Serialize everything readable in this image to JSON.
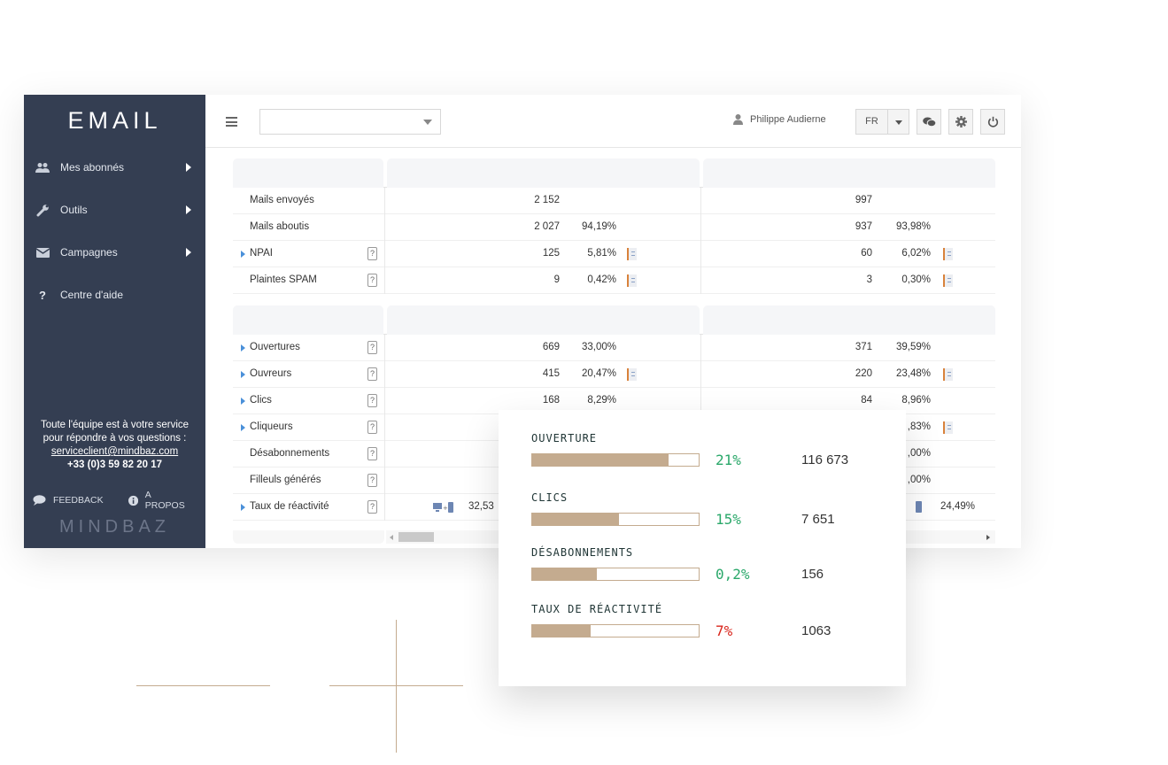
{
  "sidebar": {
    "logo": "EMAIL",
    "items": [
      {
        "label": "Mes abonnés"
      },
      {
        "label": "Outils"
      },
      {
        "label": "Campagnes"
      },
      {
        "label": "Centre d'aide"
      }
    ],
    "support_line1": "Toute l'équipe est à votre service",
    "support_line2": "pour répondre à vos questions :",
    "support_email": "serviceclient@mindbaz.com",
    "support_phone": "+33 (0)3 59 82 20 17",
    "feedback": "FEEDBACK",
    "about": "A PROPOS",
    "brand": "MINDBAZ"
  },
  "topbar": {
    "select_value": "",
    "user_name": "Philippe Audierne",
    "language": "FR"
  },
  "table1": {
    "rows": [
      {
        "label": "Mails envoyés",
        "expand": false,
        "help": false,
        "c1_num": "2 152",
        "c1_pct": "",
        "c1_icon": false,
        "c2_num": "997",
        "c2_pct": "",
        "c2_icon": false
      },
      {
        "label": "Mails aboutis",
        "expand": false,
        "help": false,
        "c1_num": "2 027",
        "c1_pct": "94,19%",
        "c1_icon": false,
        "c2_num": "937",
        "c2_pct": "93,98%",
        "c2_icon": false
      },
      {
        "label": "NPAI",
        "expand": true,
        "help": true,
        "c1_num": "125",
        "c1_pct": "5,81%",
        "c1_icon": true,
        "c2_num": "60",
        "c2_pct": "6,02%",
        "c2_icon": true
      },
      {
        "label": "Plaintes SPAM",
        "expand": false,
        "help": true,
        "c1_num": "9",
        "c1_pct": "0,42%",
        "c1_icon": true,
        "c2_num": "3",
        "c2_pct": "0,30%",
        "c2_icon": true
      }
    ]
  },
  "table2": {
    "rows": [
      {
        "label": "Ouvertures",
        "expand": true,
        "help": true,
        "c1_num": "669",
        "c1_pct": "33,00%",
        "c1_icon": false,
        "c2_num": "371",
        "c2_pct": "39,59%",
        "c2_icon": false
      },
      {
        "label": "Ouvreurs",
        "expand": true,
        "help": true,
        "c1_num": "415",
        "c1_pct": "20,47%",
        "c1_icon": true,
        "c2_num": "220",
        "c2_pct": "23,48%",
        "c2_icon": true
      },
      {
        "label": "Clics",
        "expand": true,
        "help": true,
        "c1_num": "168",
        "c1_pct": "8,29%",
        "c1_icon": false,
        "c2_num": "84",
        "c2_pct": "8,96%",
        "c2_icon": false
      },
      {
        "label": "Cliqueurs",
        "expand": true,
        "help": true,
        "c1_num": "",
        "c1_pct": "",
        "c1_icon": false,
        "c2_num": "",
        "c2_pct": ",83%",
        "c2_icon": true
      },
      {
        "label": "Désabonnements",
        "expand": false,
        "help": true,
        "c1_num": "",
        "c1_pct": "",
        "c1_icon": false,
        "c2_num": "",
        "c2_pct": ",00%",
        "c2_icon": false
      },
      {
        "label": "Filleuls générés",
        "expand": false,
        "help": true,
        "c1_num": "",
        "c1_pct": "",
        "c1_icon": false,
        "c2_num": "",
        "c2_pct": ",00%",
        "c2_icon": false
      },
      {
        "label": "Taux de réactivité",
        "expand": true,
        "help": true,
        "c1_num": "",
        "c1_pct": "32,53",
        "c1_icon": false,
        "c2_num": "",
        "c2_pct": "24,49%",
        "c2_icon": false
      }
    ]
  },
  "card": {
    "metrics": [
      {
        "label": "OUVERTURE",
        "fill": 0.82,
        "percent": "21%",
        "value": "116 673",
        "color": "#2aa86a"
      },
      {
        "label": "CLICS",
        "fill": 0.52,
        "percent": "15%",
        "value": "7 651",
        "color": "#2aa86a"
      },
      {
        "label": "DÉSABONNEMENTS",
        "fill": 0.39,
        "percent": "0,2%",
        "value": "156",
        "color": "#2aa86a"
      },
      {
        "label": "TAUX DE RÉACTIVITÉ",
        "fill": 0.35,
        "percent": "7%",
        "value": "1063",
        "color": "#d9261c"
      }
    ]
  },
  "colors": {
    "sidebar_bg": "#343e52",
    "accent_tan": "#c4ab8f",
    "positive": "#2aa86a",
    "negative": "#d9261c"
  },
  "icons": {
    "nav": [
      "users-icon",
      "wrench-icon",
      "envelope-icon",
      "question-icon"
    ],
    "topbar": [
      "hamburger-icon",
      "user-icon",
      "chat-icon",
      "gear-icon",
      "power-icon"
    ]
  }
}
